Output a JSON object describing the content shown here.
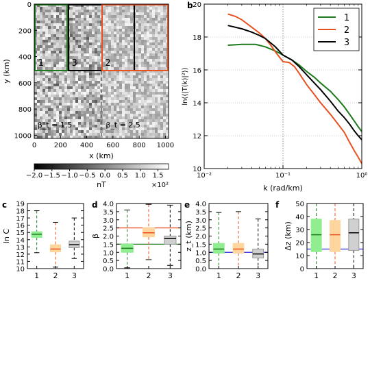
{
  "chart_data": [
    {
      "id": "a",
      "type": "heatmap",
      "panel_label": "",
      "xlabel": "x (km)",
      "ylabel": "y (km)",
      "xlim": [
        0,
        1024
      ],
      "ylim": [
        1024,
        0
      ],
      "xticks": [
        "0",
        "200",
        "400",
        "600",
        "800",
        "1000"
      ],
      "yticks": [
        "0",
        "200",
        "400",
        "600",
        "800",
        "1000"
      ],
      "regions": [
        {
          "label": "1",
          "x": [
            0,
            256
          ],
          "y": [
            0,
            512
          ],
          "color": "#1a7a1a"
        },
        {
          "label": "3",
          "x": [
            256,
            768
          ],
          "y": [
            0,
            512
          ],
          "color": "#000000"
        },
        {
          "label": "2",
          "x": [
            512,
            1024
          ],
          "y": [
            0,
            512
          ],
          "color": "#e8501e"
        }
      ],
      "divider_x": 512,
      "annotations": [
        {
          "text": "β_t = 1.5",
          "color": "#1a7a1a"
        },
        {
          "text": "β_t = 2.5",
          "color": "#e8501e"
        }
      ],
      "colorbar": {
        "ticks": [
          "−2.0",
          "−1.5",
          "−1.0",
          "−0.5",
          "0.0",
          "0.5",
          "1.0",
          "1.5"
        ],
        "range": [
          -2.0,
          1.8
        ],
        "unit": "nT",
        "multiplier": "×10²"
      }
    },
    {
      "id": "b",
      "type": "line",
      "panel_label": "b",
      "xlabel": "k (rad/km)",
      "ylabel": "ln(⟨|T(k)|²⟩)",
      "xscale": "log",
      "xlim": [
        0.01,
        1.0
      ],
      "ylim": [
        10,
        20
      ],
      "xticks": [
        "10⁻²",
        "10⁻¹",
        "10⁰"
      ],
      "yticks": [
        "10",
        "12",
        "14",
        "16",
        "18",
        "20"
      ],
      "vline_x": 0.1,
      "grid": "dotted",
      "legend": "top-right",
      "series": [
        {
          "name": "1",
          "color": "#1a7a1a",
          "x": [
            0.02,
            0.03,
            0.045,
            0.06,
            0.08,
            0.1,
            0.13,
            0.16,
            0.2,
            0.25,
            0.3,
            0.4,
            0.5,
            0.6,
            0.7,
            0.8,
            0.9,
            1.0
          ],
          "y": [
            17.5,
            17.55,
            17.55,
            17.4,
            17.15,
            16.9,
            16.6,
            16.3,
            15.9,
            15.55,
            15.2,
            14.7,
            14.2,
            13.75,
            13.3,
            12.9,
            12.55,
            12.25
          ]
        },
        {
          "name": "2",
          "color": "#e8501e",
          "x": [
            0.02,
            0.025,
            0.03,
            0.04,
            0.05,
            0.06,
            0.07,
            0.08,
            0.1,
            0.12,
            0.14,
            0.16,
            0.2,
            0.25,
            0.3,
            0.4,
            0.5,
            0.6,
            0.7,
            0.8,
            0.9,
            1.0
          ],
          "y": [
            19.4,
            19.25,
            19.05,
            18.6,
            18.25,
            17.9,
            17.5,
            17.1,
            16.5,
            16.45,
            16.2,
            15.8,
            15.1,
            14.5,
            14.0,
            13.3,
            12.7,
            12.2,
            11.6,
            11.1,
            10.7,
            10.3
          ]
        },
        {
          "name": "3",
          "color": "#000000",
          "x": [
            0.02,
            0.03,
            0.04,
            0.05,
            0.06,
            0.08,
            0.1,
            0.13,
            0.16,
            0.2,
            0.25,
            0.3,
            0.4,
            0.5,
            0.6,
            0.7,
            0.8,
            0.9,
            1.0
          ],
          "y": [
            18.7,
            18.5,
            18.3,
            18.1,
            17.9,
            17.4,
            16.9,
            16.6,
            16.2,
            15.7,
            15.2,
            14.8,
            14.1,
            13.5,
            13.1,
            12.7,
            12.3,
            12.0,
            11.75
          ]
        }
      ]
    },
    {
      "id": "c",
      "type": "box",
      "panel_label": "c",
      "ylabel": "ln C",
      "ylim": [
        10,
        19
      ],
      "yticks": [
        "10",
        "11",
        "12",
        "13",
        "14",
        "15",
        "16",
        "17",
        "18",
        "19"
      ],
      "categories": [
        "1",
        "2",
        "3"
      ],
      "boxes": [
        {
          "min": 12.2,
          "q1": 14.3,
          "median": 14.75,
          "q3": 15.1,
          "max": 18.0
        },
        {
          "min": 10.2,
          "q1": 12.3,
          "median": 12.7,
          "q3": 13.3,
          "max": 16.4
        },
        {
          "min": 11.4,
          "q1": 12.9,
          "median": 13.3,
          "q3": 13.8,
          "max": 17.0
        }
      ]
    },
    {
      "id": "d",
      "type": "box",
      "panel_label": "d",
      "ylabel": "β",
      "ylim": [
        0,
        4
      ],
      "yticks": [
        "0.0",
        "0.5",
        "1.0",
        "1.5",
        "2.0",
        "2.5",
        "3.0",
        "3.5",
        "4.0"
      ],
      "categories": [
        "1",
        "2",
        "3"
      ],
      "hlines": [
        {
          "y": 1.5,
          "color": "#1a7a1a"
        },
        {
          "y": 2.5,
          "color": "#e8501e"
        }
      ],
      "boxes": [
        {
          "min": 0.05,
          "q1": 1.0,
          "median": 1.25,
          "q3": 1.5,
          "max": 3.6
        },
        {
          "min": 0.55,
          "q1": 1.95,
          "median": 2.2,
          "q3": 2.5,
          "max": 3.95
        },
        {
          "min": 0.2,
          "q1": 1.5,
          "median": 1.85,
          "q3": 2.0,
          "max": 3.9
        }
      ]
    },
    {
      "id": "e",
      "type": "box",
      "panel_label": "e",
      "ylabel": "z_t (km)",
      "ylim": [
        0,
        4
      ],
      "yticks": [
        "0.0",
        "0.5",
        "1.0",
        "1.5",
        "2.0",
        "2.5",
        "3.0",
        "3.5",
        "4.0"
      ],
      "categories": [
        "1",
        "2",
        "3"
      ],
      "hlines": [
        {
          "y": 1.0,
          "color": "#2a2ad8"
        }
      ],
      "boxes": [
        {
          "min": 0.0,
          "q1": 0.95,
          "median": 1.2,
          "q3": 1.55,
          "max": 3.45
        },
        {
          "min": 0.0,
          "q1": 0.95,
          "median": 1.2,
          "q3": 1.55,
          "max": 3.5
        },
        {
          "min": 0.0,
          "q1": 0.65,
          "median": 0.9,
          "q3": 1.2,
          "max": 3.05
        }
      ]
    },
    {
      "id": "f",
      "type": "box",
      "panel_label": "f",
      "ylabel": "Δz (km)",
      "ylim": [
        0,
        50
      ],
      "yticks": [
        "0",
        "10",
        "20",
        "30",
        "40",
        "50"
      ],
      "categories": [
        "1",
        "2",
        "3"
      ],
      "hlines": [
        {
          "y": 15,
          "color": "#2a2ad8"
        }
      ],
      "boxes": [
        {
          "min": 0,
          "q1": 13,
          "median": 26,
          "q3": 38,
          "max": 50
        },
        {
          "min": 0,
          "q1": 13,
          "median": 26,
          "q3": 37,
          "max": 50
        },
        {
          "min": 0,
          "q1": 14,
          "median": 27.5,
          "q3": 38,
          "max": 50
        }
      ]
    }
  ],
  "box_fill_colors": [
    "#90ee90",
    "#ffd59e",
    "#d0d0d0"
  ],
  "box_line_colors": [
    "#1a7a1a",
    "#e8501e",
    "#000000"
  ]
}
